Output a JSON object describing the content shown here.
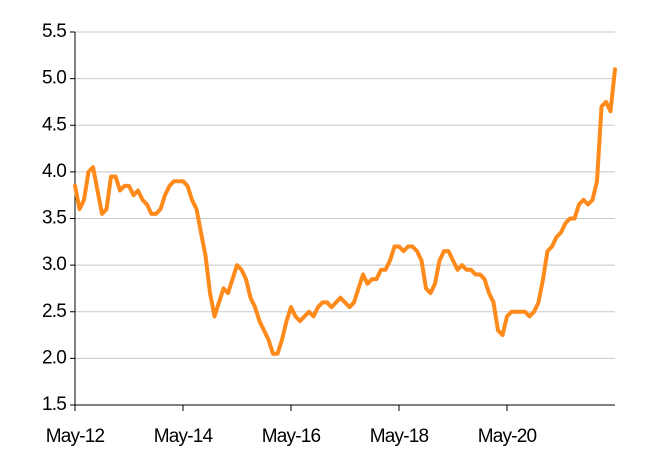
{
  "chart_data": {
    "type": "line",
    "x": [
      "2012-05",
      "2012-06",
      "2012-07",
      "2012-08",
      "2012-09",
      "2012-10",
      "2012-11",
      "2012-12",
      "2013-01",
      "2013-02",
      "2013-03",
      "2013-04",
      "2013-05",
      "2013-06",
      "2013-07",
      "2013-08",
      "2013-09",
      "2013-10",
      "2013-11",
      "2013-12",
      "2014-01",
      "2014-02",
      "2014-03",
      "2014-04",
      "2014-05",
      "2014-06",
      "2014-07",
      "2014-08",
      "2014-09",
      "2014-10",
      "2014-11",
      "2014-12",
      "2015-01",
      "2015-02",
      "2015-03",
      "2015-04",
      "2015-05",
      "2015-06",
      "2015-07",
      "2015-08",
      "2015-09",
      "2015-10",
      "2015-11",
      "2015-12",
      "2016-01",
      "2016-02",
      "2016-03",
      "2016-04",
      "2016-05",
      "2016-06",
      "2016-07",
      "2016-08",
      "2016-09",
      "2016-10",
      "2016-11",
      "2016-12",
      "2017-01",
      "2017-02",
      "2017-03",
      "2017-04",
      "2017-05",
      "2017-06",
      "2017-07",
      "2017-08",
      "2017-09",
      "2017-10",
      "2017-11",
      "2017-12",
      "2018-01",
      "2018-02",
      "2018-03",
      "2018-04",
      "2018-05",
      "2018-06",
      "2018-07",
      "2018-08",
      "2018-09",
      "2018-10",
      "2018-11",
      "2018-12",
      "2019-01",
      "2019-02",
      "2019-03",
      "2019-04",
      "2019-05",
      "2019-06",
      "2019-07",
      "2019-08",
      "2019-09",
      "2019-10",
      "2019-11",
      "2019-12",
      "2020-01",
      "2020-02",
      "2020-03",
      "2020-04",
      "2020-05",
      "2020-06",
      "2020-07",
      "2020-08",
      "2020-09",
      "2020-10",
      "2020-11",
      "2020-12",
      "2021-01",
      "2021-02",
      "2021-03",
      "2021-04",
      "2021-05",
      "2021-06",
      "2021-07",
      "2021-08",
      "2021-09",
      "2021-10",
      "2021-11",
      "2021-12",
      "2022-01",
      "2022-02",
      "2022-03",
      "2022-04",
      "2022-05"
    ],
    "series": [
      {
        "color": "#ff8a1c",
        "values": [
          3.85,
          3.6,
          3.7,
          4.0,
          4.05,
          3.8,
          3.55,
          3.6,
          3.95,
          3.95,
          3.8,
          3.85,
          3.85,
          3.75,
          3.8,
          3.7,
          3.65,
          3.55,
          3.55,
          3.6,
          3.75,
          3.85,
          3.9,
          3.9,
          3.9,
          3.85,
          3.7,
          3.6,
          3.35,
          3.1,
          2.7,
          2.45,
          2.6,
          2.75,
          2.7,
          2.85,
          3.0,
          2.95,
          2.85,
          2.65,
          2.55,
          2.4,
          2.3,
          2.2,
          2.05,
          2.05,
          2.2,
          2.4,
          2.55,
          2.45,
          2.4,
          2.45,
          2.5,
          2.45,
          2.55,
          2.6,
          2.6,
          2.55,
          2.6,
          2.65,
          2.6,
          2.55,
          2.6,
          2.75,
          2.9,
          2.8,
          2.85,
          2.85,
          2.95,
          2.95,
          3.05,
          3.2,
          3.2,
          3.15,
          3.2,
          3.2,
          3.15,
          3.05,
          2.75,
          2.7,
          2.8,
          3.05,
          3.15,
          3.15,
          3.05,
          2.95,
          3.0,
          2.95,
          2.95,
          2.9,
          2.9,
          2.85,
          2.7,
          2.6,
          2.3,
          2.25,
          2.45,
          2.5,
          2.5,
          2.5,
          2.5,
          2.45,
          2.5,
          2.6,
          2.85,
          3.15,
          3.2,
          3.3,
          3.35,
          3.45,
          3.5,
          3.5,
          3.65,
          3.7,
          3.65,
          3.7,
          3.9,
          4.7,
          4.75,
          4.65,
          5.1
        ]
      }
    ],
    "xlim": [
      "2012-05",
      "2022-05"
    ],
    "xticks": [
      {
        "value": "2012-05",
        "label": "May-12"
      },
      {
        "value": "2014-05",
        "label": "May-14"
      },
      {
        "value": "2016-05",
        "label": "May-16"
      },
      {
        "value": "2018-05",
        "label": "May-18"
      },
      {
        "value": "2020-05",
        "label": "May-20"
      }
    ],
    "ylim": [
      1.5,
      5.5
    ],
    "yticks": [
      1.5,
      {
        "value": 2,
        "label": "2.0"
      },
      2.5,
      {
        "value": 3,
        "label": "3.0"
      },
      3.5,
      {
        "value": 4,
        "label": "4.0"
      },
      4.5,
      {
        "value": 5,
        "label": "5.0"
      },
      5.5
    ],
    "grid": true
  }
}
